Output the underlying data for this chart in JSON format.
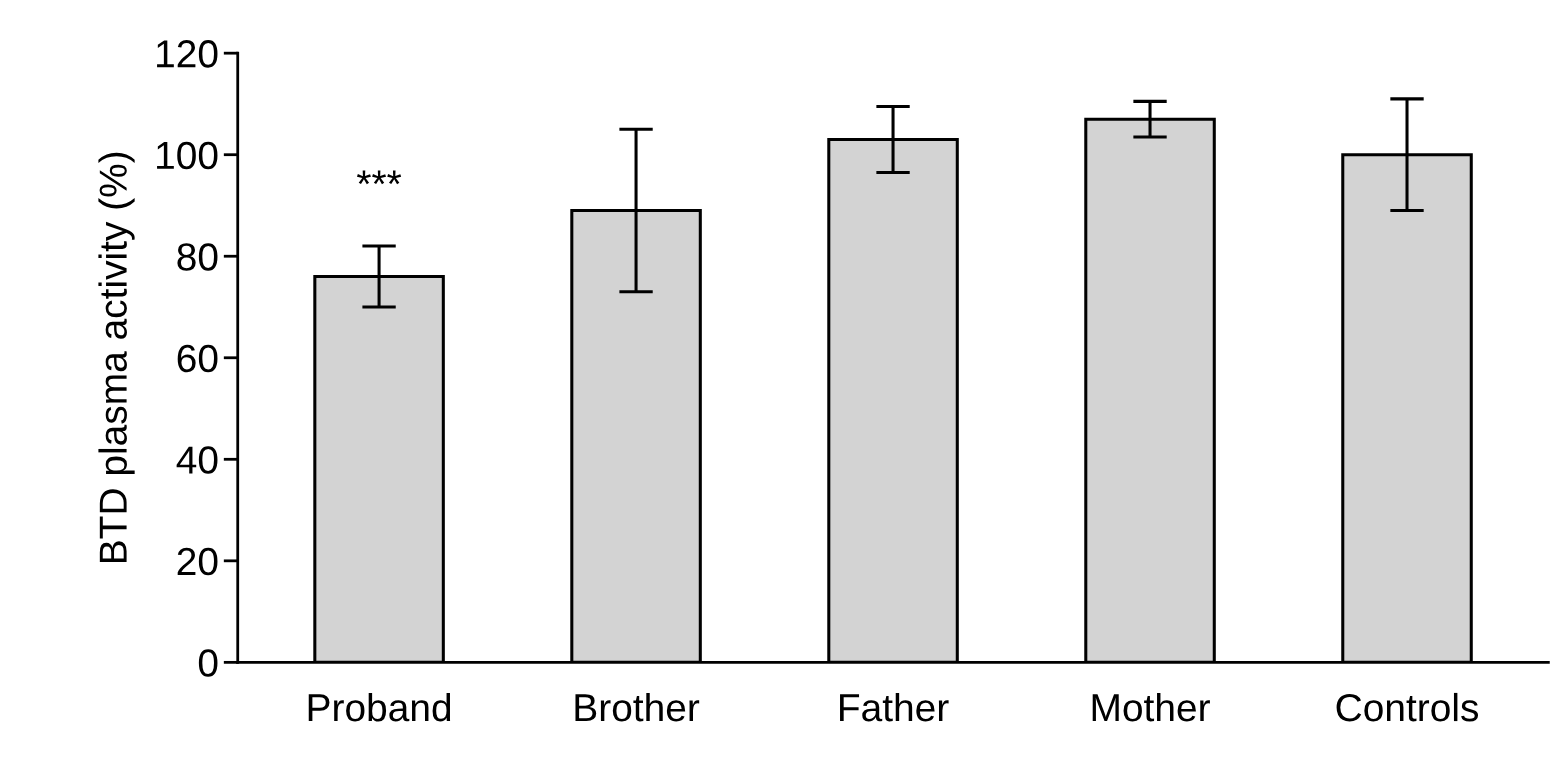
{
  "chart_data": {
    "type": "bar",
    "ylabel": "BTD plasma activity (%)",
    "categories": [
      "Proband",
      "Brother",
      "Father",
      "Mother",
      "Controls"
    ],
    "series": [
      {
        "color": "#d3d3d3",
        "values": [
          76,
          89,
          103,
          107,
          100
        ],
        "errors": [
          6,
          16,
          6.5,
          3.5,
          11
        ]
      }
    ],
    "ylim": [
      0,
      120
    ],
    "yticks": [
      0,
      20,
      40,
      60,
      80,
      100,
      120
    ],
    "grid": false,
    "legend": false,
    "annotations": [
      "***"
    ]
  }
}
